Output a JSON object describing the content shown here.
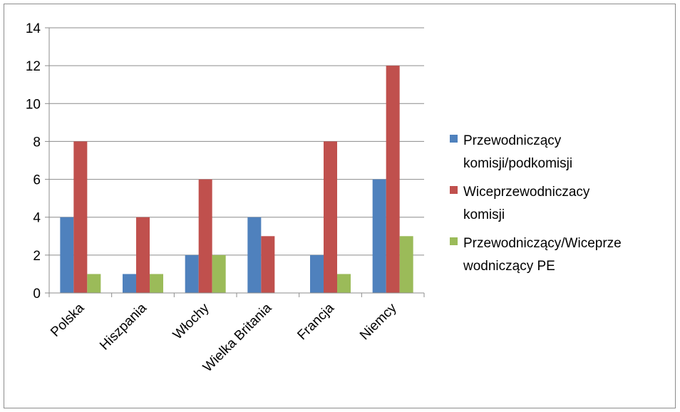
{
  "chart_data": {
    "type": "bar",
    "title": "",
    "xlabel": "",
    "ylabel": "",
    "categories": [
      "Polska",
      "Hiszpania",
      "Włochy",
      "Wielka Britania",
      "Francja",
      "Niemcy"
    ],
    "series": [
      {
        "name": "Przewodniczący komisji/podkomisji",
        "legend_lines": [
          "Przewodniczący",
          "komisji/podkomisji"
        ],
        "color": "#4F81BD",
        "values": [
          4,
          1,
          2,
          4,
          2,
          6
        ]
      },
      {
        "name": "Wiceprzewodniczacy komisji",
        "legend_lines": [
          "Wiceprzewodniczacy",
          "komisji"
        ],
        "color": "#C0504D",
        "values": [
          8,
          4,
          6,
          3,
          8,
          12
        ]
      },
      {
        "name": "Przewodniczący/Wiceprzewodniczący PE",
        "legend_lines": [
          "Przewodniczący/Wiceprze",
          "wodniczący PE"
        ],
        "color": "#9BBB59",
        "values": [
          1,
          1,
          2,
          0,
          1,
          3
        ]
      }
    ],
    "ylim": [
      0,
      14
    ],
    "yticks": [
      0,
      2,
      4,
      6,
      8,
      10,
      12,
      14
    ],
    "grid": true,
    "legend": "right"
  }
}
